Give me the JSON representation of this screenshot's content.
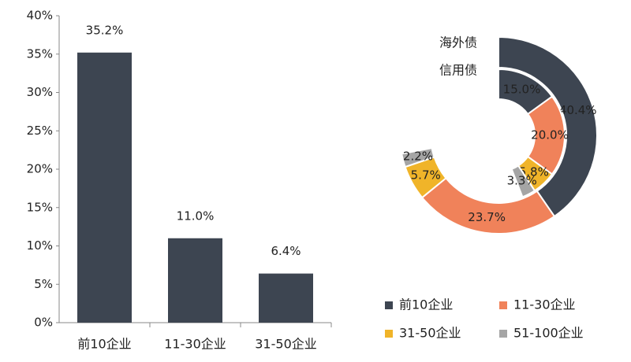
{
  "chart_data": [
    {
      "type": "bar",
      "categories": [
        "前10企业",
        "11-30企业",
        "31-50企业"
      ],
      "values": [
        35.2,
        11.0,
        6.4
      ],
      "value_labels": [
        "35.2%",
        "11.0%",
        "6.4%"
      ],
      "color": "#3d4551",
      "ylim": [
        0,
        40
      ],
      "yticks": [
        {
          "value": 0,
          "label": "0%"
        },
        {
          "value": 5,
          "label": "5%"
        },
        {
          "value": 10,
          "label": "10%"
        },
        {
          "value": 15,
          "label": "15%"
        },
        {
          "value": 20,
          "label": "20%"
        },
        {
          "value": 25,
          "label": "25%"
        },
        {
          "value": 30,
          "label": "30%"
        },
        {
          "value": 35,
          "label": "35%"
        },
        {
          "value": 40,
          "label": "40%"
        }
      ]
    },
    {
      "type": "donut",
      "categories": [
        "前10企业",
        "11-30企业",
        "31-50企业",
        "51-100企业"
      ],
      "colors": [
        "#3d4551",
        "#f0825a",
        "#f0b429",
        "#a5a5a5"
      ],
      "rings": [
        {
          "name": "海外债",
          "values": [
            40.4,
            23.7,
            5.7,
            2.2
          ],
          "value_labels": [
            "40.4%",
            "23.7%",
            "5.7%",
            "2.2%"
          ]
        },
        {
          "name": "信用债",
          "values": [
            15.0,
            20.0,
            5.8,
            3.3
          ],
          "value_labels": [
            "15.0%",
            "20.0%",
            "5.8%",
            "3.3%"
          ]
        }
      ]
    }
  ]
}
